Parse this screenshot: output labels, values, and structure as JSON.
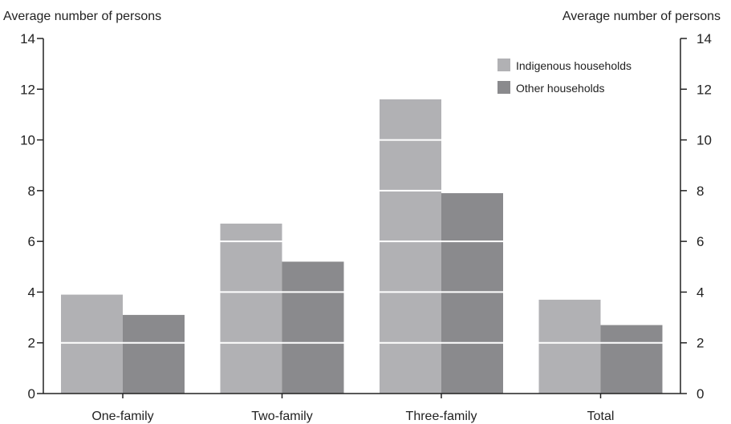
{
  "chart_data": {
    "type": "bar",
    "title": "",
    "ylabel_left": "Average number of persons",
    "ylabel_right": "Average number of persons",
    "categories": [
      "One-family",
      "Two-family",
      "Three-family",
      "Total"
    ],
    "series": [
      {
        "name": "Indigenous households",
        "color": "#b1b1b4",
        "values": [
          3.9,
          6.7,
          11.6,
          3.7
        ]
      },
      {
        "name": "Other households",
        "color": "#8a8a8d",
        "values": [
          3.1,
          5.2,
          7.9,
          2.7
        ]
      }
    ],
    "ylim": [
      0,
      14
    ],
    "yticks": [
      "0",
      "2",
      "4",
      "6",
      "8",
      "10",
      "12",
      "14"
    ],
    "gridlines": "white lines drawn across bars at each major tick",
    "legend_position": "top-right"
  }
}
